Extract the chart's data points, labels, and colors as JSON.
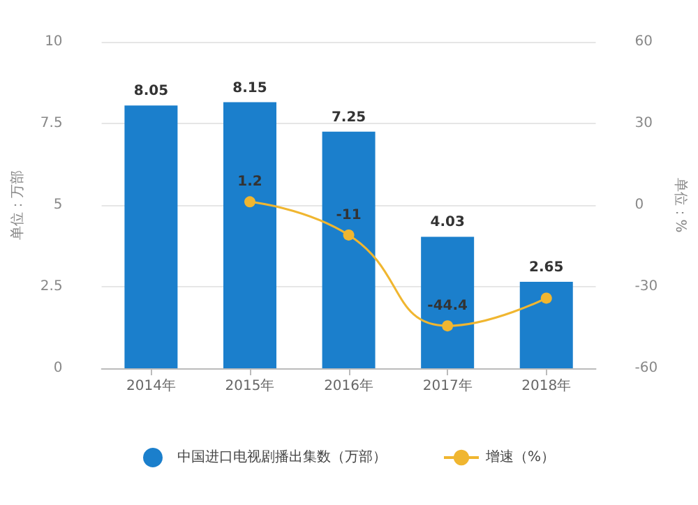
{
  "chart_data": {
    "type": "bar",
    "categories": [
      "2014年",
      "2015年",
      "2016年",
      "2017年",
      "2018年"
    ],
    "ylabel": "单位：万部",
    "y2label": "单位：%",
    "ylim": [
      0,
      10
    ],
    "yticks": [
      0,
      2.5,
      5,
      7.5,
      10
    ],
    "y2lim": [
      -60,
      60
    ],
    "y2ticks": [
      -60,
      -30,
      0,
      30,
      60
    ],
    "grid": "y",
    "legend": "bottom",
    "marker": "circle",
    "series": [
      {
        "name": "中国进口电视剧播出集数（万部）",
        "color": "#1b7fcc",
        "values": [
          8.05,
          8.15,
          7.25,
          4.03,
          2.65
        ],
        "value_labels": [
          "8.05",
          "8.15",
          "7.25",
          "4.03",
          "2.65"
        ]
      },
      {
        "name": "增速（%）",
        "type": "line",
        "axis": "y2",
        "color": "#f0b630",
        "values": [
          null,
          1.2,
          -11,
          -44.4,
          -34.2
        ],
        "value_labels": [
          null,
          "1.2",
          "-11",
          "-44.4",
          null
        ]
      }
    ]
  }
}
